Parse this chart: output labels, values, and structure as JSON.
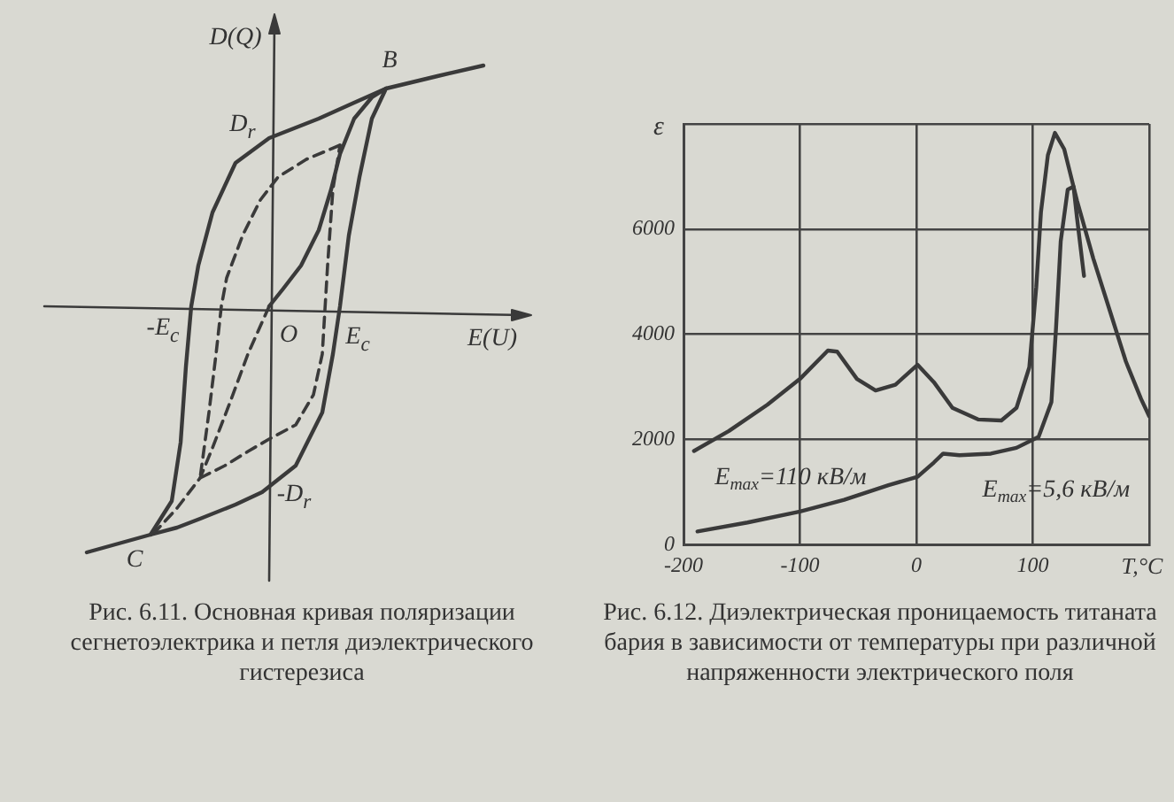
{
  "chart_data": [
    {
      "type": "other",
      "title": "Рис. 6.11. Основная кривая поляризации сегнетоэлектрика и петля диэлектрического гистерезиса",
      "annotations": [
        "D(Q)",
        "E(U)",
        "B",
        "C",
        "D$_{r}$",
        "-E$_{c}$",
        "O",
        "E$_{c}$",
        "-D$_{r}$"
      ]
    },
    {
      "type": "line",
      "title": "Рис. 6.12. Диэлектрическая проницаемость титаната бария в зависимости от температуры при различной напряженности электрического поля",
      "xlabel": "T,°C",
      "ylabel": "ε",
      "legend": false,
      "grid": true,
      "marker": "none",
      "xlim": [
        -200,
        200
      ],
      "xticks": [
        -200,
        -100,
        0,
        100,
        {
          "value": 200,
          "label": null
        }
      ],
      "ylim": [
        0,
        8000
      ],
      "yticks": [
        0,
        2000,
        4000,
        6000,
        {
          "value": 8000,
          "label": null
        }
      ],
      "series": [
        {
          "color": "#3a3a3a",
          "x": [
            -191,
            -161,
            -128,
            -100,
            -76,
            -68,
            -51,
            -35,
            -18,
            1,
            15,
            31,
            53,
            73,
            86,
            97,
            103,
            107,
            113,
            119,
            127,
            138,
            152,
            166,
            180,
            193,
            200
          ],
          "values": [
            1780,
            2160,
            2660,
            3150,
            3690,
            3670,
            3150,
            2930,
            3040,
            3420,
            3090,
            2600,
            2380,
            2360,
            2600,
            3370,
            4900,
            6320,
            7410,
            7830,
            7520,
            6540,
            5440,
            4460,
            3480,
            2770,
            2440
          ]
        },
        {
          "color": "#3a3a3a",
          "x": [
            -188,
            -145,
            -100,
            -62,
            -24,
            1,
            15,
            23,
            37,
            64,
            86,
            105,
            116,
            120,
            124,
            130,
            135,
            138,
            144
          ],
          "values": [
            250,
            420,
            630,
            850,
            1130,
            1290,
            1560,
            1730,
            1700,
            1730,
            1840,
            2050,
            2710,
            4130,
            5770,
            6750,
            6810,
            6210,
            5110
          ]
        }
      ],
      "annotations": [
        "E$_{max}$=110 кВ/м",
        "E$_{max}$=5,6 кВ/м"
      ]
    }
  ]
}
